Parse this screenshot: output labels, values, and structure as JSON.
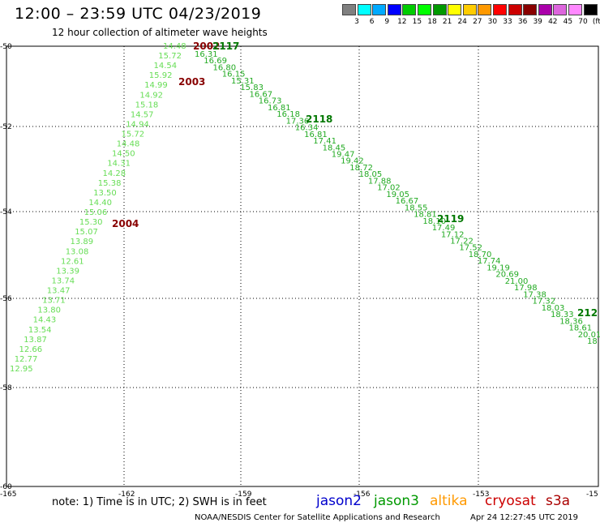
{
  "header": {
    "title": "12:00 – 23:59 UTC 04/23/2019",
    "subtitle": "12 hour collection of altimeter wave heights"
  },
  "scale": {
    "colors": [
      "#808080",
      "#00ffff",
      "#00aaff",
      "#0000ff",
      "#00cc00",
      "#00ff00",
      "#009900",
      "#ffff00",
      "#ffcc00",
      "#ff9900",
      "#ff0000",
      "#cc0000",
      "#880000",
      "#aa00aa",
      "#dd66dd",
      "#ff88ff",
      "#000000"
    ],
    "labels": [
      "3",
      "6",
      "9",
      "12",
      "15",
      "18",
      "21",
      "24",
      "27",
      "30",
      "33",
      "36",
      "39",
      "42",
      "45",
      "70",
      "(ft)"
    ]
  },
  "axes": {
    "lat_labels": [
      "-50",
      "-52",
      "-54",
      "-56",
      "-58",
      "-60"
    ],
    "lon_labels": [
      "-165",
      "-162",
      "-159",
      "-156",
      "-153",
      "-15"
    ]
  },
  "track_a": {
    "color": "#66dd55",
    "values": [
      "14.48",
      "15.72",
      "14.54",
      "15.92",
      "14.99",
      "14.92",
      "15.18",
      "14.57",
      "14.94",
      "15.72",
      "14.48",
      "14.50",
      "14.31",
      "14.28",
      "15.38",
      "13.50",
      "14.40",
      "15.06",
      "15.30",
      "15.07",
      "13.89",
      "13.08",
      "12.61",
      "13.39",
      "13.74",
      "13.47",
      "13.71",
      "13.80",
      "14.43",
      "13.54",
      "13.87",
      "12.66",
      "12.77",
      "12.95"
    ]
  },
  "track_b": {
    "color": "#22aa22",
    "values": [
      "16.31",
      "16.69",
      "16.80",
      "16.15",
      "15.31",
      "15.83",
      "16.67",
      "16.73",
      "16.81",
      "16.18",
      "17.36",
      "16.34",
      "16.81",
      "17.41",
      "18.45",
      "19.47",
      "19.42",
      "18.72",
      "18.05",
      "17.88",
      "17.02",
      "19.05",
      "16.67",
      "18.55",
      "18.81",
      "18.10",
      "17.49",
      "17.12",
      "17.22",
      "17.52",
      "18.70",
      "17.74",
      "19.19",
      "20.69",
      "21.00",
      "17.98",
      "17.38",
      "17.32",
      "18.03",
      "18.33",
      "18.36",
      "18.61",
      "20.01",
      "18"
    ]
  },
  "hour_labels": [
    {
      "text": "2002",
      "color": "#880000"
    },
    {
      "text": "2117",
      "color": "#007700"
    },
    {
      "text": "2003",
      "color": "#880000"
    },
    {
      "text": "2118",
      "color": "#007700"
    },
    {
      "text": "2004",
      "color": "#880000"
    },
    {
      "text": "2119",
      "color": "#007700"
    },
    {
      "text": "212",
      "color": "#007700"
    }
  ],
  "footer": {
    "note": "note:  1) Time is in UTC;  2) SWH is in feet",
    "satellites": [
      {
        "name": "jason2",
        "color": "#0000cc"
      },
      {
        "name": "jason3",
        "color": "#009900"
      },
      {
        "name": "altika",
        "color": "#ff9900"
      },
      {
        "name": "cryosat",
        "color": "#cc0000"
      },
      {
        "name": "s3a",
        "color": "#aa0000"
      }
    ],
    "credit": "NOAA/NESDIS Center for Satellite Applications and Research",
    "timestamp": "Apr 24 12:27:45 UTC 2019"
  }
}
